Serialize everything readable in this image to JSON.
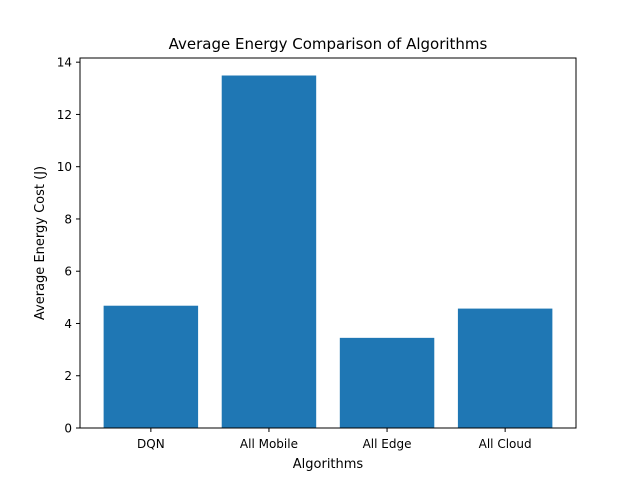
{
  "chart_data": {
    "type": "bar",
    "title": "Average Energy Comparison of Algorithms",
    "xlabel": "Algorithms",
    "ylabel": "Average Energy Cost (J)",
    "categories": [
      "DQN",
      "All Mobile",
      "All Edge",
      "All Cloud"
    ],
    "values": [
      4.68,
      13.49,
      3.45,
      4.57
    ],
    "ylim": [
      0,
      14.16
    ],
    "yticks": [
      0,
      2,
      4,
      6,
      8,
      10,
      12,
      14
    ],
    "ytick_labels": [
      "0",
      "2",
      "4",
      "6",
      "8",
      "10",
      "12",
      "14"
    ],
    "bar_color": "#1f77b4",
    "grid": false,
    "legend": "none"
  }
}
